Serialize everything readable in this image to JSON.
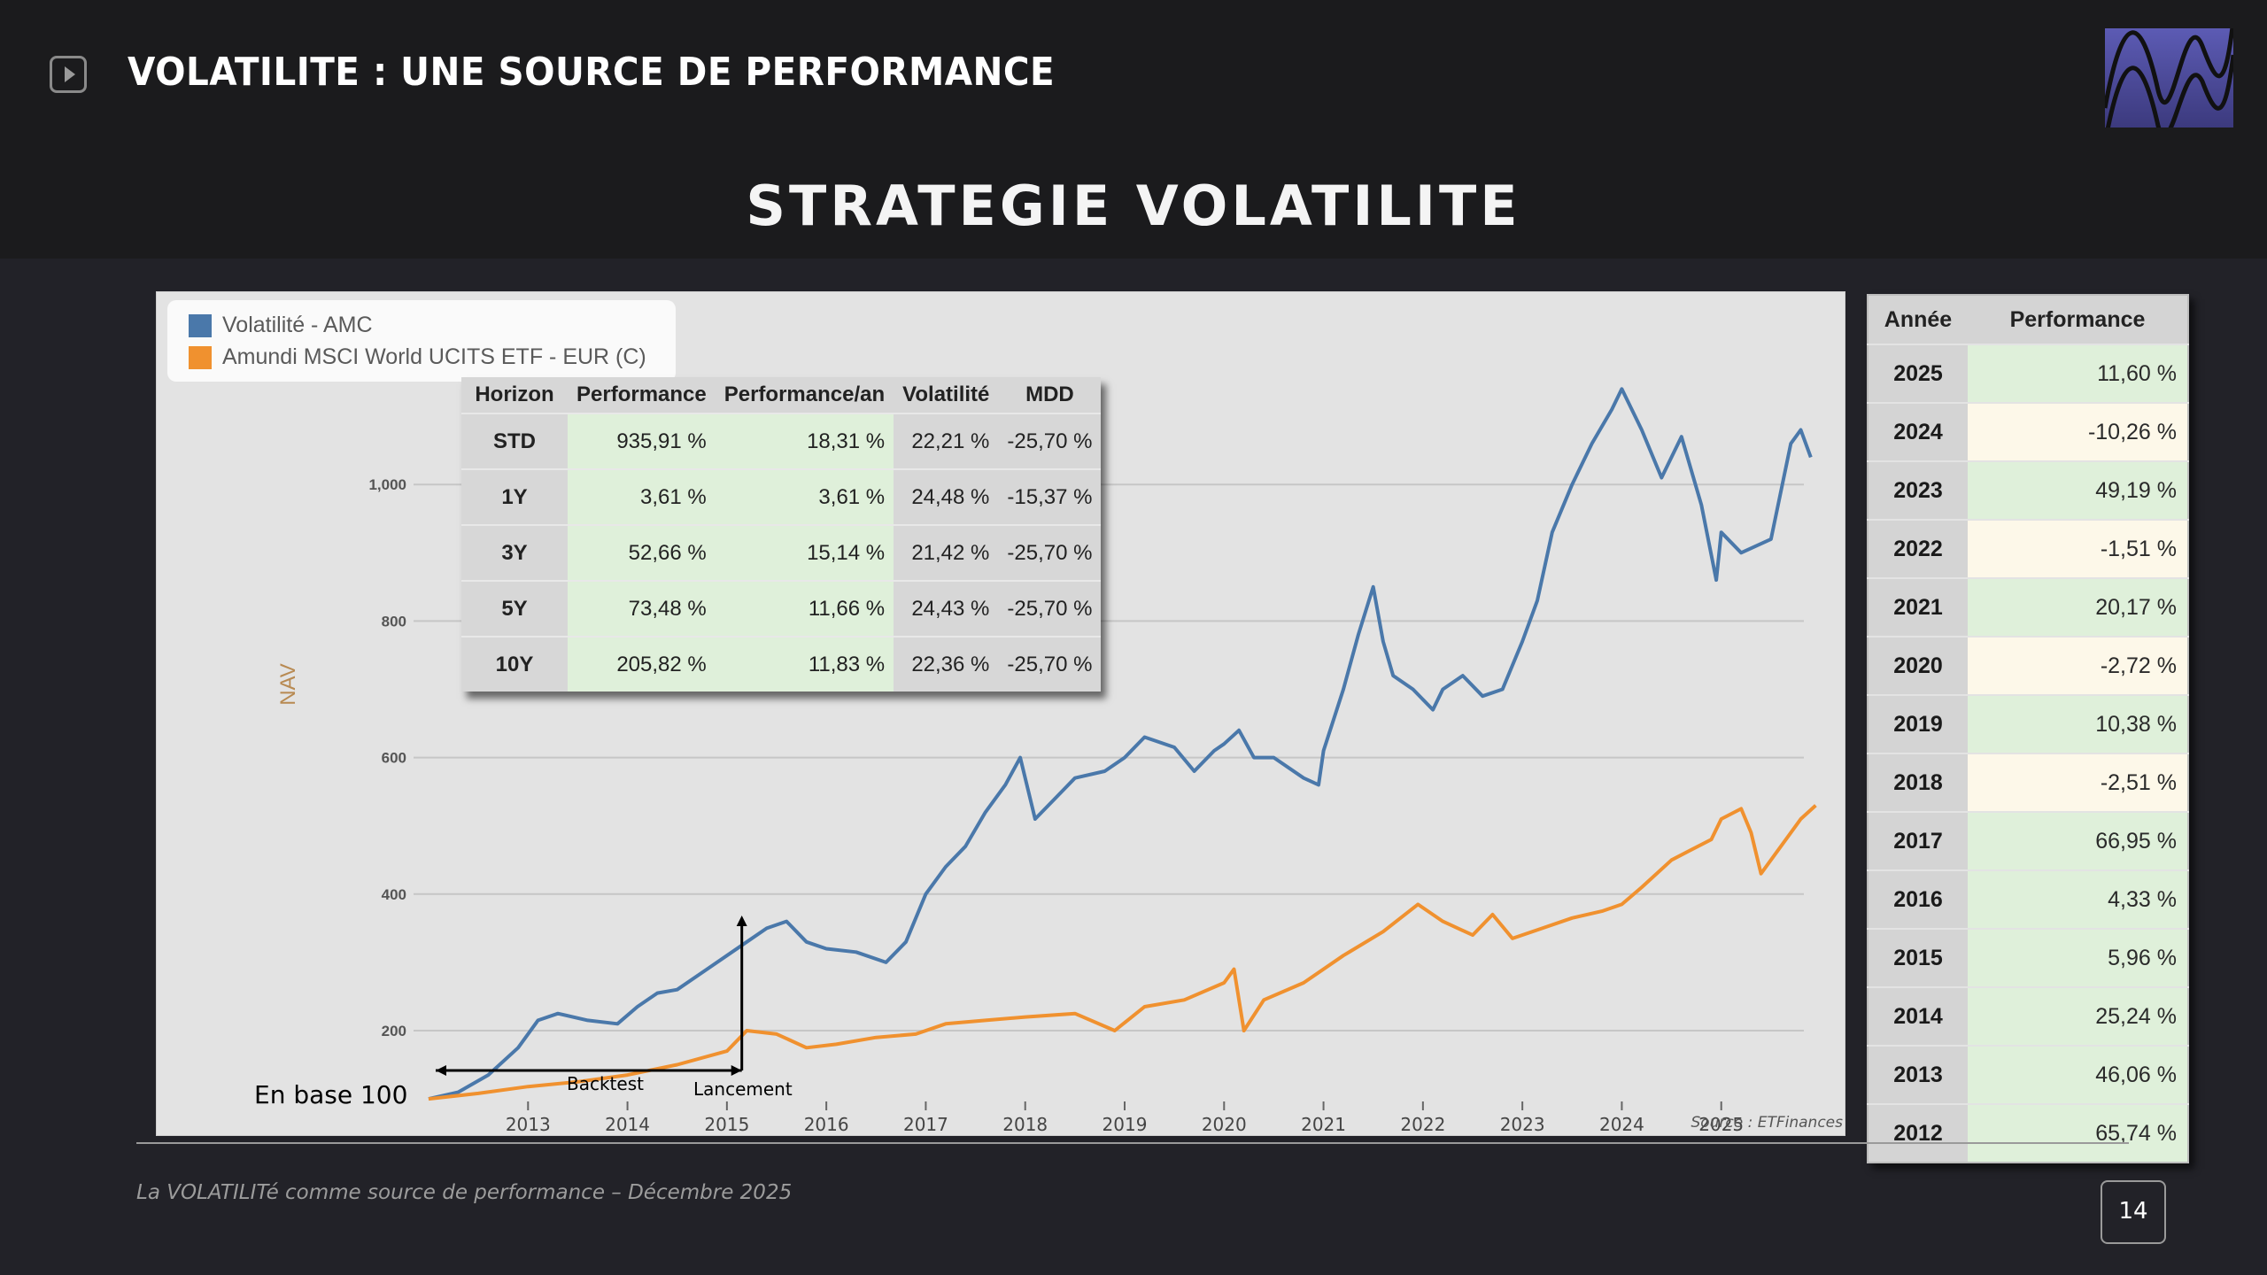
{
  "header": {
    "title": "VOLATILITE : UNE SOURCE DE PERFORMANCE",
    "play_icon": "play-icon",
    "logo_icon": "wave-logo"
  },
  "slide_title": "STRATEGIE VOLATILITE",
  "legend": {
    "items": [
      {
        "label": "Volatilité - AMC",
        "color": "#4a78aa"
      },
      {
        "label": "Amundi MSCI World UCITS ETF - EUR (C)",
        "color": "#f0912f"
      }
    ]
  },
  "perf_table": {
    "headers": [
      "Horizon",
      "Performance",
      "Performance/an",
      "Volatilité",
      "MDD"
    ],
    "rows": [
      [
        "STD",
        "935,91 %",
        "18,31 %",
        "22,21 %",
        "-25,70 %"
      ],
      [
        "1Y",
        "3,61 %",
        "3,61 %",
        "24,48 %",
        "-15,37 %"
      ],
      [
        "3Y",
        "52,66 %",
        "15,14 %",
        "21,42 %",
        "-25,70 %"
      ],
      [
        "5Y",
        "73,48 %",
        "11,66 %",
        "24,43 %",
        "-25,70 %"
      ],
      [
        "10Y",
        "205,82 %",
        "11,83 %",
        "22,36 %",
        "-25,70 %"
      ]
    ]
  },
  "annotations": {
    "base": "En base 100",
    "backtest": "Backtest",
    "launch": "Lancement",
    "source": "Source : ETFinances"
  },
  "year_table": {
    "headers": [
      "Année",
      "Performance"
    ],
    "rows": [
      {
        "year": "2025",
        "value": "11,60 %",
        "sign": "pos"
      },
      {
        "year": "2024",
        "value": "-10,26 %",
        "sign": "neg"
      },
      {
        "year": "2023",
        "value": "49,19 %",
        "sign": "pos"
      },
      {
        "year": "2022",
        "value": "-1,51 %",
        "sign": "neg"
      },
      {
        "year": "2021",
        "value": "20,17 %",
        "sign": "pos"
      },
      {
        "year": "2020",
        "value": "-2,72 %",
        "sign": "neg"
      },
      {
        "year": "2019",
        "value": "10,38 %",
        "sign": "pos"
      },
      {
        "year": "2018",
        "value": "-2,51 %",
        "sign": "neg"
      },
      {
        "year": "2017",
        "value": "66,95 %",
        "sign": "pos"
      },
      {
        "year": "2016",
        "value": "4,33 %",
        "sign": "pos"
      },
      {
        "year": "2015",
        "value": "5,96 %",
        "sign": "pos"
      },
      {
        "year": "2014",
        "value": "25,24 %",
        "sign": "pos"
      },
      {
        "year": "2013",
        "value": "46,06 %",
        "sign": "pos"
      },
      {
        "year": "2012",
        "value": "65,74 %",
        "sign": "pos"
      }
    ]
  },
  "footer": {
    "text": "La VOLATILITé comme source de performance – Décembre 2025",
    "page": "14"
  },
  "chart_data": {
    "type": "line",
    "title": "",
    "xlabel": "",
    "ylabel": "NAV",
    "xlim": [
      2012.0,
      2026.0
    ],
    "ylim": [
      100,
      1150
    ],
    "x_ticks": [
      2013,
      2014,
      2015,
      2016,
      2017,
      2018,
      2019,
      2020,
      2021,
      2022,
      2023,
      2024,
      2025
    ],
    "y_ticks": [
      200,
      400,
      600,
      800,
      1000
    ],
    "y_tick_labels": [
      "200",
      "400",
      "600",
      "800",
      "1,000"
    ],
    "grid": true,
    "legend_position": "top-left",
    "backtest_range": [
      2012.0,
      2015.15
    ],
    "launch_x": 2015.15,
    "series": [
      {
        "name": "Volatilité - AMC",
        "color": "#4a78aa",
        "points": [
          [
            2012.0,
            100
          ],
          [
            2012.3,
            110
          ],
          [
            2012.6,
            135
          ],
          [
            2012.9,
            175
          ],
          [
            2013.1,
            215
          ],
          [
            2013.3,
            225
          ],
          [
            2013.6,
            215
          ],
          [
            2013.9,
            210
          ],
          [
            2014.1,
            235
          ],
          [
            2014.3,
            255
          ],
          [
            2014.5,
            260
          ],
          [
            2014.8,
            290
          ],
          [
            2015.0,
            310
          ],
          [
            2015.2,
            330
          ],
          [
            2015.4,
            350
          ],
          [
            2015.6,
            360
          ],
          [
            2015.8,
            330
          ],
          [
            2016.0,
            320
          ],
          [
            2016.3,
            315
          ],
          [
            2016.6,
            300
          ],
          [
            2016.8,
            330
          ],
          [
            2017.0,
            400
          ],
          [
            2017.2,
            440
          ],
          [
            2017.4,
            470
          ],
          [
            2017.6,
            520
          ],
          [
            2017.8,
            560
          ],
          [
            2017.95,
            600
          ],
          [
            2018.1,
            510
          ],
          [
            2018.3,
            540
          ],
          [
            2018.5,
            570
          ],
          [
            2018.8,
            580
          ],
          [
            2019.0,
            600
          ],
          [
            2019.2,
            630
          ],
          [
            2019.5,
            615
          ],
          [
            2019.7,
            580
          ],
          [
            2019.9,
            610
          ],
          [
            2020.0,
            620
          ],
          [
            2020.15,
            640
          ],
          [
            2020.3,
            600
          ],
          [
            2020.5,
            600
          ],
          [
            2020.8,
            570
          ],
          [
            2020.95,
            560
          ],
          [
            2021.0,
            610
          ],
          [
            2021.2,
            700
          ],
          [
            2021.35,
            780
          ],
          [
            2021.5,
            850
          ],
          [
            2021.6,
            770
          ],
          [
            2021.7,
            720
          ],
          [
            2021.9,
            700
          ],
          [
            2022.1,
            670
          ],
          [
            2022.2,
            700
          ],
          [
            2022.4,
            720
          ],
          [
            2022.6,
            690
          ],
          [
            2022.8,
            700
          ],
          [
            2023.0,
            770
          ],
          [
            2023.15,
            830
          ],
          [
            2023.3,
            930
          ],
          [
            2023.5,
            1000
          ],
          [
            2023.7,
            1060
          ],
          [
            2023.9,
            1110
          ],
          [
            2024.0,
            1140
          ],
          [
            2024.2,
            1080
          ],
          [
            2024.4,
            1010
          ],
          [
            2024.6,
            1070
          ],
          [
            2024.8,
            970
          ],
          [
            2024.95,
            860
          ],
          [
            2025.0,
            930
          ],
          [
            2025.2,
            900
          ],
          [
            2025.5,
            920
          ],
          [
            2025.7,
            1060
          ],
          [
            2025.8,
            1080
          ],
          [
            2025.9,
            1040
          ]
        ]
      },
      {
        "name": "Amundi MSCI World UCITS ETF - EUR (C)",
        "color": "#f0912f",
        "points": [
          [
            2012.0,
            100
          ],
          [
            2012.5,
            108
          ],
          [
            2013.0,
            118
          ],
          [
            2013.5,
            125
          ],
          [
            2014.0,
            135
          ],
          [
            2014.5,
            150
          ],
          [
            2015.0,
            170
          ],
          [
            2015.2,
            200
          ],
          [
            2015.5,
            195
          ],
          [
            2015.8,
            175
          ],
          [
            2016.1,
            180
          ],
          [
            2016.5,
            190
          ],
          [
            2016.9,
            195
          ],
          [
            2017.2,
            210
          ],
          [
            2017.6,
            215
          ],
          [
            2018.0,
            220
          ],
          [
            2018.5,
            225
          ],
          [
            2018.9,
            200
          ],
          [
            2019.2,
            235
          ],
          [
            2019.6,
            245
          ],
          [
            2020.0,
            270
          ],
          [
            2020.1,
            290
          ],
          [
            2020.2,
            200
          ],
          [
            2020.4,
            245
          ],
          [
            2020.8,
            270
          ],
          [
            2021.2,
            310
          ],
          [
            2021.6,
            345
          ],
          [
            2021.95,
            385
          ],
          [
            2022.2,
            360
          ],
          [
            2022.5,
            340
          ],
          [
            2022.7,
            370
          ],
          [
            2022.9,
            335
          ],
          [
            2023.2,
            350
          ],
          [
            2023.5,
            365
          ],
          [
            2023.8,
            375
          ],
          [
            2024.0,
            385
          ],
          [
            2024.2,
            410
          ],
          [
            2024.5,
            450
          ],
          [
            2024.9,
            480
          ],
          [
            2025.0,
            510
          ],
          [
            2025.2,
            525
          ],
          [
            2025.3,
            490
          ],
          [
            2025.4,
            430
          ],
          [
            2025.6,
            470
          ],
          [
            2025.8,
            510
          ],
          [
            2025.95,
            530
          ]
        ]
      }
    ]
  }
}
